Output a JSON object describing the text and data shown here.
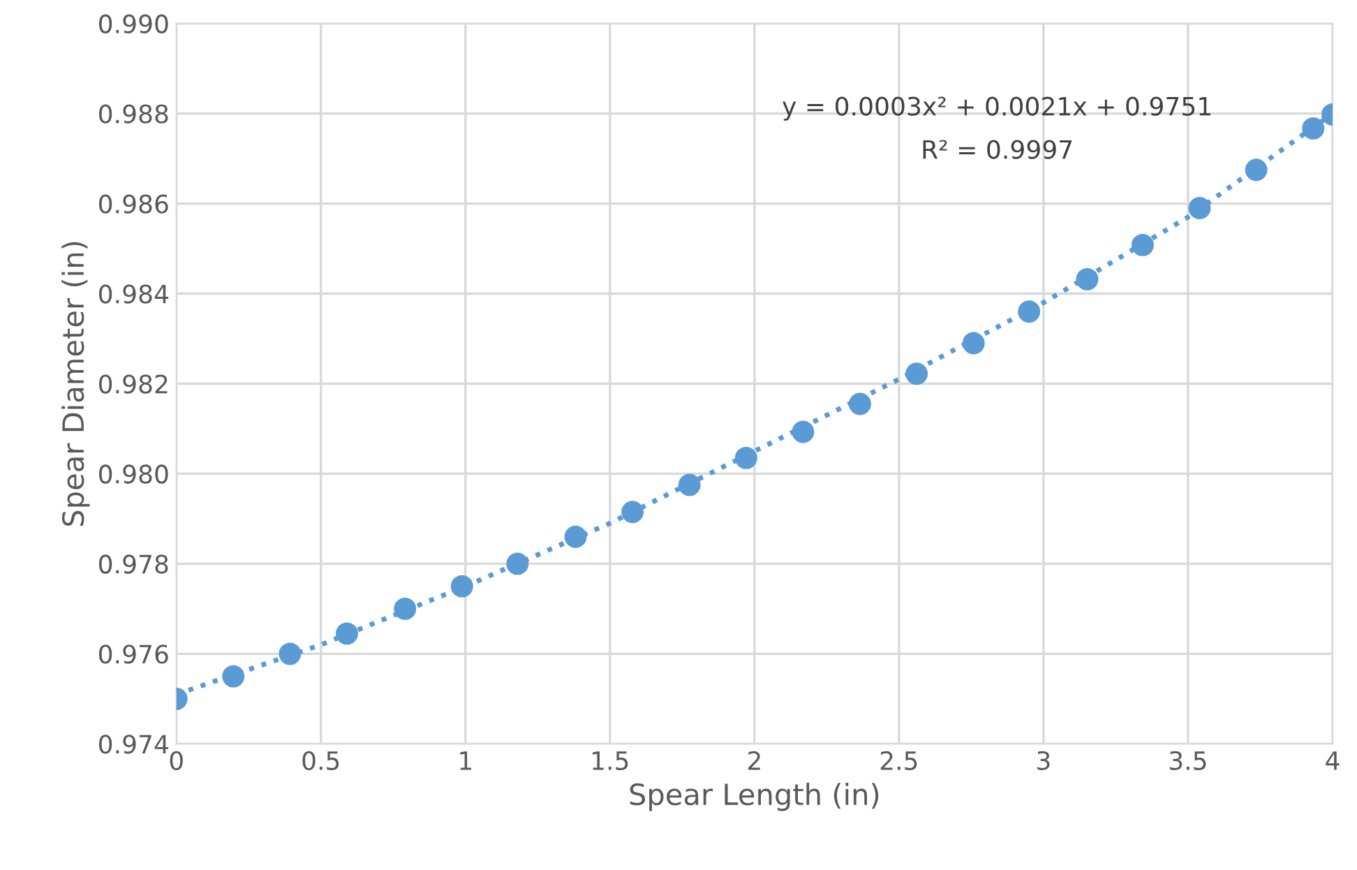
{
  "chart_data": {
    "type": "scatter",
    "xlabel": "Spear Length (in)",
    "ylabel": "Spear Diameter (in)",
    "series": [
      {
        "color": "#5b9bd5",
        "marker": "circle",
        "x": [
          0,
          0.197,
          0.393,
          0.59,
          0.791,
          0.988,
          1.18,
          1.381,
          1.578,
          1.775,
          1.971,
          2.168,
          2.365,
          2.561,
          2.758,
          2.95,
          3.151,
          3.343,
          3.54,
          3.736,
          3.933,
          4.0
        ],
        "values": [
          0.975,
          0.9755,
          0.976,
          0.97645,
          0.977,
          0.9775,
          0.978,
          0.9786,
          0.97915,
          0.97975,
          0.98035,
          0.98093,
          0.98155,
          0.98222,
          0.9829,
          0.9836,
          0.98432,
          0.98508,
          0.9859,
          0.98675,
          0.98767,
          0.98798
        ]
      },
      {
        "type": "line",
        "color": "#5b9bd5",
        "line_style": "dotted",
        "marker": "none",
        "x": [
          0,
          0.5,
          1,
          1.5,
          2,
          2.5,
          3,
          3.5,
          4
        ],
        "values": [
          0.9751,
          0.9762,
          0.9775,
          0.9789,
          0.9805,
          0.9821,
          0.9838,
          0.9857,
          0.988
        ]
      }
    ],
    "xlim": [
      0,
      4
    ],
    "xticks": [
      0,
      0.5,
      1,
      1.5,
      2,
      2.5,
      3,
      3.5,
      4
    ],
    "ylim": [
      0.974,
      0.99
    ],
    "yticks": [
      {
        "value": 0.974,
        "label": "0.974"
      },
      {
        "value": 0.976,
        "label": "0.976"
      },
      {
        "value": 0.978,
        "label": "0.978"
      },
      {
        "value": 0.98,
        "label": "0.980"
      },
      {
        "value": 0.982,
        "label": "0.982"
      },
      {
        "value": 0.984,
        "label": "0.984"
      },
      {
        "value": 0.986,
        "label": "0.986"
      },
      {
        "value": 0.988,
        "label": "0.988"
      },
      {
        "value": 0.99,
        "label": "0.990"
      }
    ],
    "grid": true,
    "legend": false,
    "annotations": [
      "y = 0.0003x² + 0.0021x + 0.9751",
      "R² = 0.9997"
    ]
  }
}
